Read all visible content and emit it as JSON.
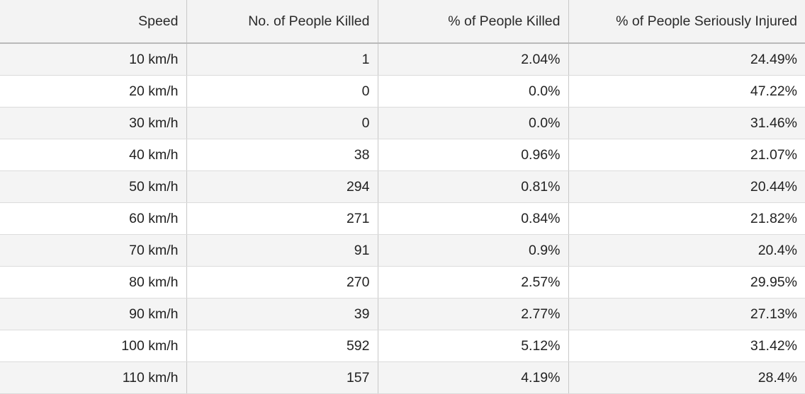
{
  "table": {
    "columns": [
      "Speed",
      "No. of People Killed",
      "% of People Killed",
      "% of People Seriously Injured"
    ],
    "rows": [
      [
        "10 km/h",
        "1",
        "2.04%",
        "24.49%"
      ],
      [
        "20 km/h",
        "0",
        "0.0%",
        "47.22%"
      ],
      [
        "30 km/h",
        "0",
        "0.0%",
        "31.46%"
      ],
      [
        "40 km/h",
        "38",
        "0.96%",
        "21.07%"
      ],
      [
        "50 km/h",
        "294",
        "0.81%",
        "20.44%"
      ],
      [
        "60 km/h",
        "271",
        "0.84%",
        "21.82%"
      ],
      [
        "70 km/h",
        "91",
        "0.9%",
        "20.4%"
      ],
      [
        "80 km/h",
        "270",
        "2.57%",
        "29.95%"
      ],
      [
        "90 km/h",
        "39",
        "2.77%",
        "27.13%"
      ],
      [
        "100 km/h",
        "592",
        "5.12%",
        "31.42%"
      ],
      [
        "110 km/h",
        "157",
        "4.19%",
        "28.4%"
      ]
    ]
  }
}
